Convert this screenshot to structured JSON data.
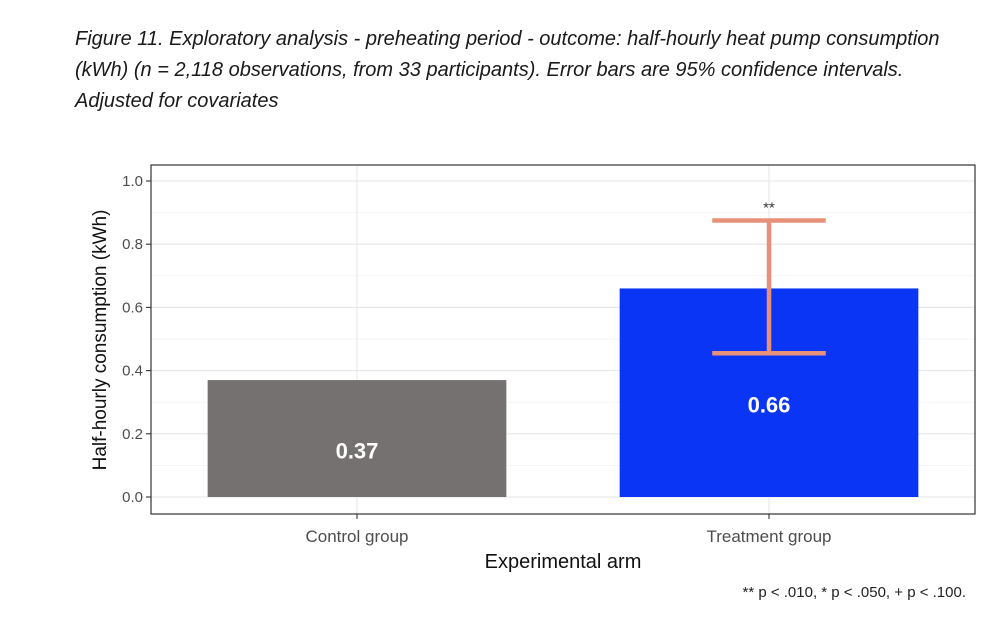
{
  "caption": "Figure 11. Exploratory analysis - preheating period - outcome: half-hourly heat pump consumption (kWh) (n = 2,118 observations, from 33 participants). Error bars are 95% confidence intervals. Adjusted for covariates",
  "footnote": "** p < .010, * p < .050, + p < .100.",
  "chart_data": {
    "type": "bar",
    "xlabel": "Experimental arm",
    "ylabel": "Half-hourly consumption (kWh)",
    "categories": [
      "Control group",
      "Treatment group"
    ],
    "values": [
      0.37,
      0.66
    ],
    "data_labels": [
      "0.37",
      "0.66"
    ],
    "colors": [
      "#757171",
      "#0a35f5"
    ],
    "error_bars": [
      null,
      {
        "low": 0.455,
        "high": 0.875
      }
    ],
    "error_bar_color": "#e8907a",
    "significance": [
      null,
      "**"
    ],
    "ylim": [
      0,
      1.05
    ],
    "yticks": [
      0.0,
      0.2,
      0.4,
      0.6,
      0.8,
      1.0
    ],
    "ytick_labels": [
      "0.0",
      "0.2",
      "0.4",
      "0.6",
      "0.8",
      "1.0"
    ],
    "grid": true,
    "legend": "none"
  }
}
